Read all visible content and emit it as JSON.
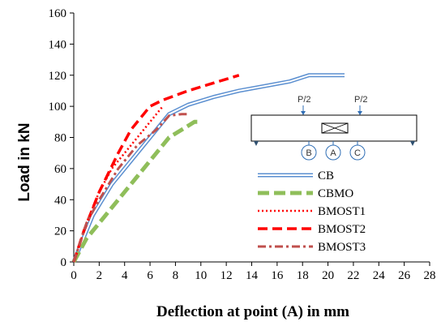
{
  "chart_data": {
    "type": "line",
    "title": "",
    "xlabel": "Deflection at point (A) in mm",
    "ylabel": "Load in kN",
    "xlim": [
      0,
      28
    ],
    "ylim": [
      0,
      160
    ],
    "xticks": [
      "0",
      "2",
      "4",
      "6",
      "8",
      "10",
      "12",
      "14",
      "16",
      "18",
      "20",
      "22",
      "24",
      "26",
      "28"
    ],
    "yticks": [
      "0",
      "20",
      "40",
      "60",
      "80",
      "100",
      "120",
      "140",
      "160"
    ],
    "grid": false,
    "legend_position": "bottom-right",
    "series": [
      {
        "name": "CB",
        "color": "#5b8fd0",
        "style": "double-line",
        "points": [
          [
            0,
            0
          ],
          [
            0.5,
            10
          ],
          [
            1.5,
            30
          ],
          [
            3,
            50
          ],
          [
            4.5,
            65
          ],
          [
            6,
            80
          ],
          [
            7.5,
            95
          ],
          [
            9,
            101
          ],
          [
            11,
            106
          ],
          [
            13,
            110
          ],
          [
            15,
            113
          ],
          [
            17,
            116
          ],
          [
            18.5,
            120
          ],
          [
            19.5,
            120
          ],
          [
            21.3,
            120
          ]
        ]
      },
      {
        "name": "CBMO",
        "color": "#8fbe5a",
        "style": "long-dash",
        "points": [
          [
            0,
            0
          ],
          [
            1,
            15
          ],
          [
            2,
            25
          ],
          [
            3.5,
            40
          ],
          [
            5,
            55
          ],
          [
            6.5,
            70
          ],
          [
            7.5,
            80
          ],
          [
            8.5,
            85
          ],
          [
            9.5,
            90
          ],
          [
            10,
            90
          ]
        ]
      },
      {
        "name": "BMOST1",
        "color": "#ff0000",
        "style": "dotted",
        "points": [
          [
            0,
            0
          ],
          [
            1,
            25
          ],
          [
            2,
            45
          ],
          [
            3,
            60
          ],
          [
            4.5,
            75
          ],
          [
            6,
            90
          ],
          [
            7,
            100
          ]
        ]
      },
      {
        "name": "BMOST2",
        "color": "#ff0000",
        "style": "dashed",
        "points": [
          [
            0,
            0
          ],
          [
            0.8,
            20
          ],
          [
            2,
            45
          ],
          [
            3.5,
            70
          ],
          [
            4.5,
            85
          ],
          [
            6,
            100
          ],
          [
            7,
            104
          ],
          [
            9,
            110
          ],
          [
            11,
            115
          ],
          [
            13,
            120
          ]
        ]
      },
      {
        "name": "BMOST3",
        "color": "#c0504d",
        "style": "dash-dot",
        "points": [
          [
            0,
            0
          ],
          [
            1,
            25
          ],
          [
            2,
            40
          ],
          [
            3.5,
            60
          ],
          [
            5,
            75
          ],
          [
            6.5,
            85
          ],
          [
            7.5,
            94
          ],
          [
            8.5,
            95
          ],
          [
            9,
            95
          ]
        ]
      }
    ],
    "inset": {
      "load_label_1": "P/2",
      "load_label_2": "P/2",
      "point_b": "B",
      "point_a": "A",
      "point_c": "C"
    }
  }
}
